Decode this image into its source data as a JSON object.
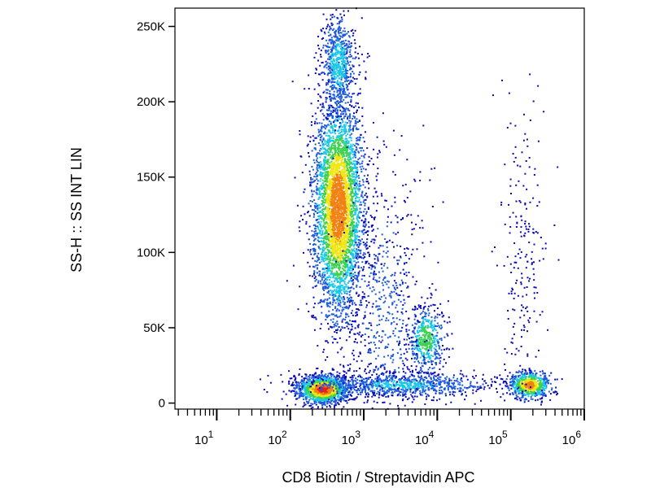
{
  "chart_data": {
    "type": "scatter",
    "style": "density-dot-plot",
    "xlabel": "CD8 Biotin / Streptavidin APC",
    "ylabel": "SS-H :: SS INT LIN",
    "x_scale": "log",
    "xlim": [
      2.7,
      1000000
    ],
    "ylim": [
      -4000,
      262144
    ],
    "x_ticks": [
      {
        "value": 10,
        "base": "10",
        "exp": "1"
      },
      {
        "value": 100,
        "base": "10",
        "exp": "2"
      },
      {
        "value": 1000,
        "base": "10",
        "exp": "3"
      },
      {
        "value": 10000,
        "base": "10",
        "exp": "4"
      },
      {
        "value": 100000,
        "base": "10",
        "exp": "5"
      },
      {
        "value": 1000000,
        "base": "10",
        "exp": "6"
      }
    ],
    "y_ticks": [
      {
        "value": 0,
        "label": "0"
      },
      {
        "value": 50000,
        "label": "50K"
      },
      {
        "value": 100000,
        "label": "100K"
      },
      {
        "value": 150000,
        "label": "150K"
      },
      {
        "value": 200000,
        "label": "200K"
      },
      {
        "value": 250000,
        "label": "250K"
      }
    ],
    "grid": false,
    "colormap": [
      "#0a0ab4",
      "#1e5adc",
      "#19c8e6",
      "#3cd250",
      "#f0e614",
      "#f08214",
      "#e61e1e"
    ],
    "populations": [
      {
        "x_center": 450,
        "x_log_spread": 0.17,
        "y_center": 130000,
        "y_spread": 36000,
        "count": 4200,
        "peak_density": 0.9
      },
      {
        "x_center": 450,
        "x_log_spread": 0.12,
        "y_center": 225000,
        "y_spread": 17000,
        "count": 700,
        "peak_density": 0.35
      },
      {
        "x_center": 280,
        "x_log_spread": 0.17,
        "y_center": 9000,
        "y_spread": 4500,
        "count": 1500,
        "peak_density": 1.0
      },
      {
        "x_center": 7000,
        "x_log_spread": 0.12,
        "y_center": 42000,
        "y_spread": 11000,
        "count": 500,
        "peak_density": 0.55
      },
      {
        "x_center": 180000,
        "x_log_spread": 0.14,
        "y_center": 12000,
        "y_spread": 4500,
        "count": 700,
        "peak_density": 0.85
      },
      {
        "x_center": 3000,
        "x_log_spread": 0.65,
        "y_center": 12000,
        "y_spread": 4000,
        "count": 900,
        "peak_density": 0.3
      },
      {
        "x_center": 2000,
        "x_log_spread": 0.3,
        "y_center": 60000,
        "y_spread": 50000,
        "count": 700,
        "peak_density": 0.12
      },
      {
        "x_center": 150000,
        "x_log_spread": 0.15,
        "y_center": 95000,
        "y_spread": 55000,
        "count": 220,
        "peak_density": 0.05
      }
    ]
  }
}
